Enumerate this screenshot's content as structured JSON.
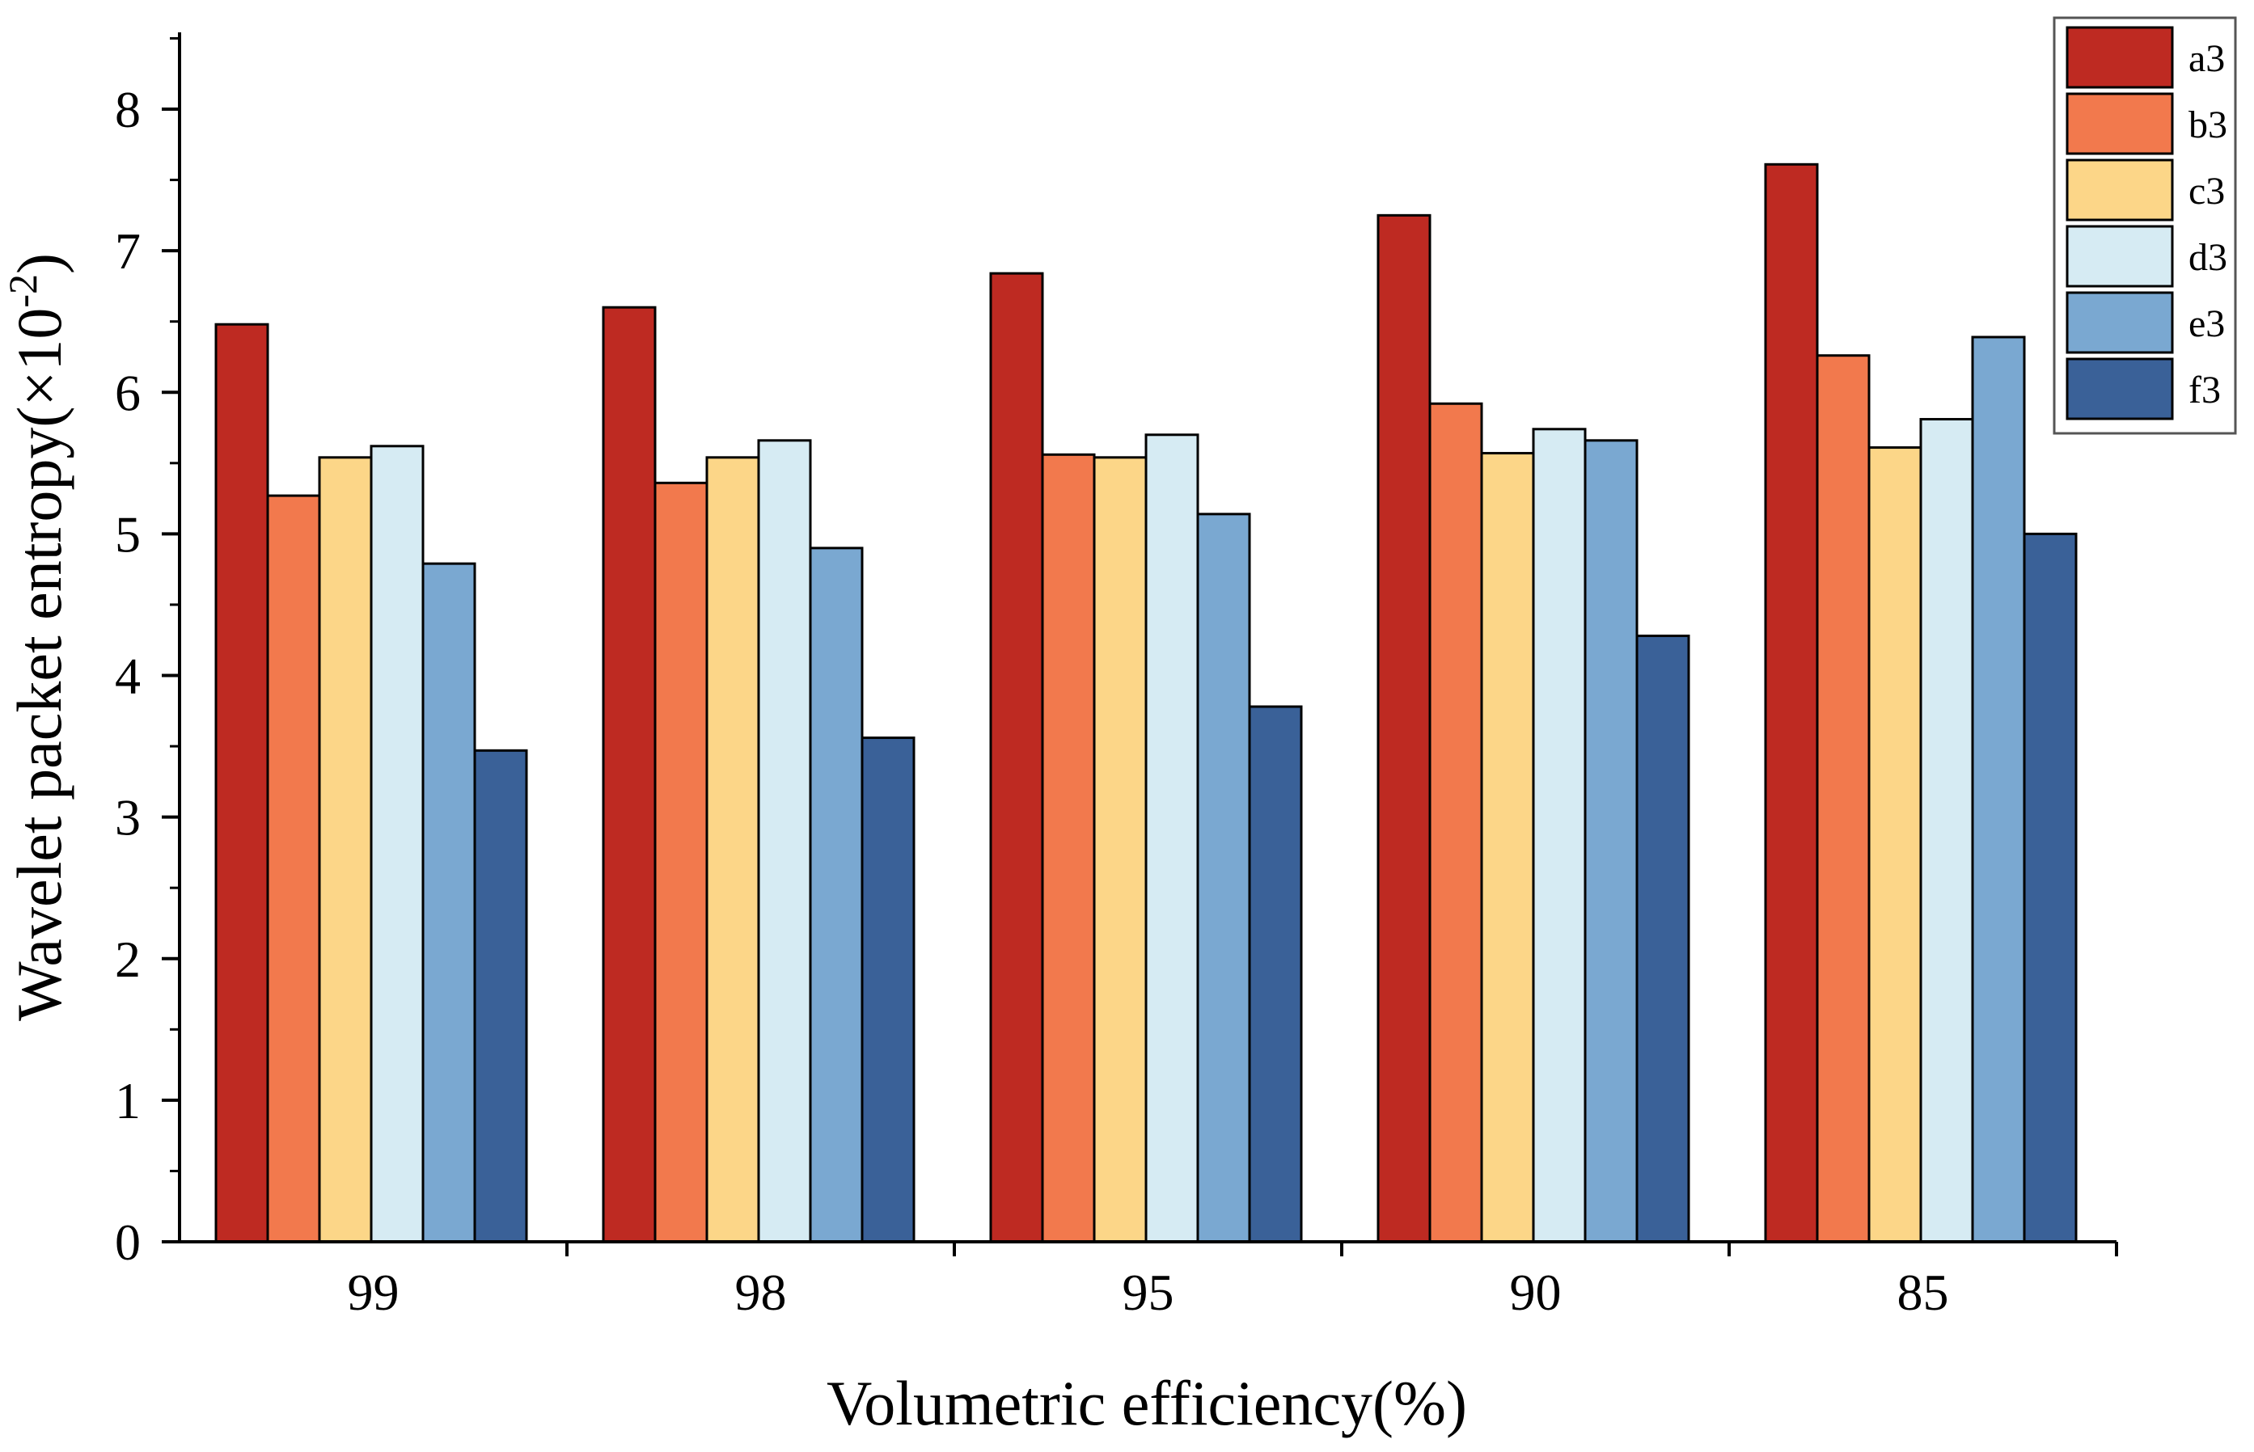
{
  "chart_data": {
    "type": "bar",
    "xlabel": "Volumetric efficiency(%)",
    "ylabel_main": "Wavelet packet entropy(×10",
    "ylabel_sup": "-2",
    "ylabel_close": ")",
    "categories": [
      "99",
      "98",
      "95",
      "90",
      "85"
    ],
    "ylim": [
      0,
      8.5
    ],
    "yticks": [
      0,
      1,
      2,
      3,
      4,
      5,
      6,
      7,
      8
    ],
    "legend_position": "top-right",
    "series": [
      {
        "name": "a3",
        "color": "#be2a22",
        "values": [
          6.48,
          6.6,
          6.84,
          7.25,
          7.61
        ]
      },
      {
        "name": "b3",
        "color": "#f2794d",
        "values": [
          5.27,
          5.36,
          5.56,
          5.92,
          6.26
        ]
      },
      {
        "name": "c3",
        "color": "#fcd688",
        "values": [
          5.54,
          5.54,
          5.54,
          5.57,
          5.61
        ]
      },
      {
        "name": "d3",
        "color": "#d6ebf3",
        "values": [
          5.62,
          5.66,
          5.7,
          5.74,
          5.81
        ]
      },
      {
        "name": "e3",
        "color": "#7aa8d1",
        "values": [
          4.79,
          4.9,
          5.14,
          5.66,
          6.39
        ]
      },
      {
        "name": "f3",
        "color": "#3a6198",
        "values": [
          3.47,
          3.56,
          3.78,
          4.28,
          5.0
        ]
      }
    ]
  }
}
